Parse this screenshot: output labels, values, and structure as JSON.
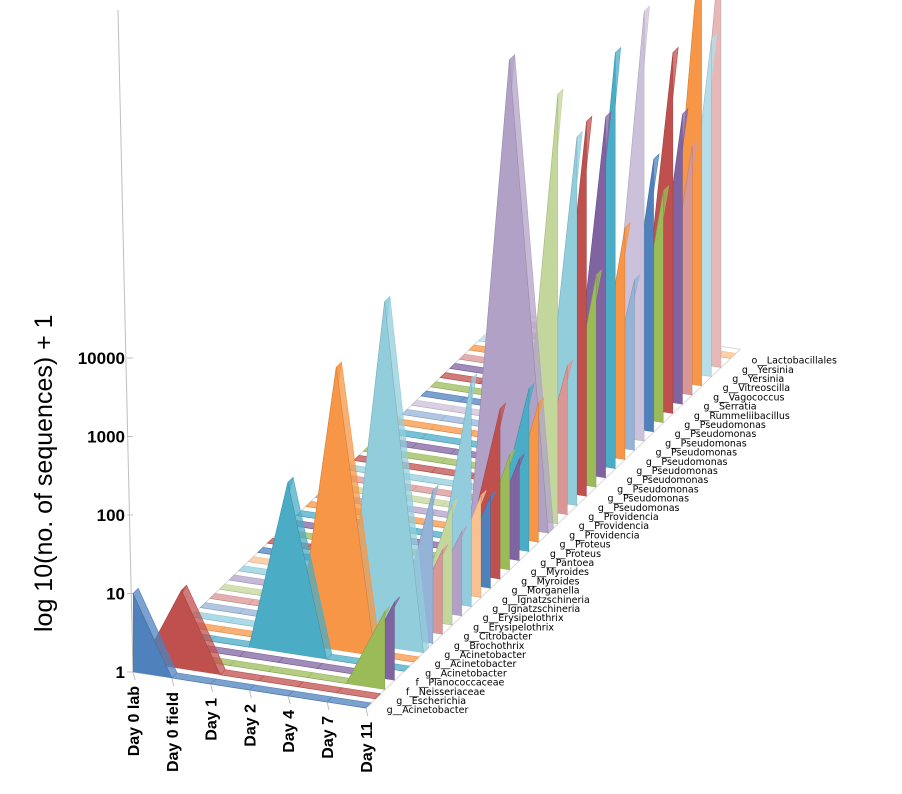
{
  "chart_data": {
    "type": "area",
    "view": "3d",
    "ylabel": "log 10(no. of sequences) + 1",
    "yscale": "log",
    "ylim": [
      1,
      1000000
    ],
    "yticks": [
      1,
      10,
      100,
      1000,
      10000
    ],
    "ytick_labels": [
      "1",
      "10",
      "100",
      "1000",
      "10000"
    ],
    "categories": [
      "Day 0 lab",
      "Day 0 field",
      "Day 1",
      "Day 2",
      "Day 4",
      "Day 7",
      "Day 11"
    ],
    "series": [
      {
        "name": "g__Acinetobacter",
        "color": "#4f81bd",
        "values": [
          10,
          1,
          1,
          1,
          1,
          1,
          1
        ]
      },
      {
        "name": "g__Escherichia",
        "color": "#c0504d",
        "values": [
          1,
          10,
          1,
          1,
          1,
          1,
          1
        ]
      },
      {
        "name": "f__Neisseriaceae",
        "color": "#9bbb59",
        "values": [
          1,
          1,
          1,
          1,
          1,
          1,
          10
        ]
      },
      {
        "name": "f__Planococcaceae",
        "color": "#8064a2",
        "values": [
          1,
          1,
          1,
          1,
          1,
          1,
          10
        ]
      },
      {
        "name": "g__Acinetobacter",
        "color": "#4bacc6",
        "values": [
          1,
          1,
          1,
          150,
          1,
          1,
          1
        ]
      },
      {
        "name": "g__Acinetobacter",
        "color": "#f79646",
        "values": [
          1,
          1,
          1,
          1,
          4000,
          1,
          1
        ]
      },
      {
        "name": "g__Acinetobacter",
        "color": "#92cddc",
        "values": [
          1,
          1,
          1,
          1,
          1,
          25000,
          1
        ]
      },
      {
        "name": "g__Brochothrix",
        "color": "#95b3d7",
        "values": [
          1,
          1,
          1,
          1,
          1,
          1,
          90
        ]
      },
      {
        "name": "g__Citrobacter",
        "color": "#d99694",
        "values": [
          1,
          1,
          1,
          1,
          1,
          1,
          12
        ]
      },
      {
        "name": "g__Erysipelothrix",
        "color": "#c3d69b",
        "values": [
          1,
          1,
          1,
          1,
          1,
          1,
          35
        ]
      },
      {
        "name": "g__Erysipelothrix",
        "color": "#b2a1c7",
        "values": [
          1,
          1,
          1,
          1,
          1,
          1,
          12
        ]
      },
      {
        "name": "g__Ignatzschineria",
        "color": "#93cddd",
        "values": [
          1,
          1,
          1,
          1,
          1,
          1,
          800
        ]
      },
      {
        "name": "g__Ignatzschineria",
        "color": "#fac090",
        "values": [
          1,
          1,
          1,
          1,
          1,
          1,
          20
        ]
      },
      {
        "name": "g__Morganella",
        "color": "#4f81bd",
        "values": [
          1,
          1,
          1,
          1,
          1,
          1,
          15
        ]
      },
      {
        "name": "g__Myroides",
        "color": "#c0504d",
        "values": [
          1,
          1,
          1,
          1,
          1,
          1,
          150
        ]
      },
      {
        "name": "g__Myroides",
        "color": "#9bbb59",
        "values": [
          1,
          1,
          1,
          1,
          1,
          1,
          30
        ]
      },
      {
        "name": "g__Pantoea",
        "color": "#8064a2",
        "values": [
          1,
          1,
          1,
          1,
          1,
          1,
          20
        ]
      },
      {
        "name": "g__Proteus",
        "color": "#4bacc6",
        "values": [
          1,
          1,
          1,
          1,
          1,
          1,
          120
        ]
      },
      {
        "name": "g__Proteus",
        "color": "#f79646",
        "values": [
          1,
          1,
          1,
          1,
          1,
          1,
          60
        ]
      },
      {
        "name": "g__Providencia",
        "color": "#b2a1c7",
        "values": [
          1,
          1,
          1,
          1,
          1,
          900000,
          1
        ]
      },
      {
        "name": "g__Providencia",
        "color": "#c3d69b",
        "values": [
          1,
          1,
          1,
          1,
          1,
          1,
          300000
        ]
      },
      {
        "name": "g__Providencia",
        "color": "#d99694",
        "values": [
          1,
          1,
          1,
          1,
          1,
          1,
          80
        ]
      },
      {
        "name": "g__Pseudomonas",
        "color": "#92cddc",
        "values": [
          1,
          1,
          1,
          1,
          1,
          1,
          50000
        ]
      },
      {
        "name": "g__Pseudomonas",
        "color": "#c0504d",
        "values": [
          1,
          1,
          1,
          1,
          1,
          1,
          60000
        ]
      },
      {
        "name": "g__Pseudomonas",
        "color": "#9bbb59",
        "values": [
          1,
          1,
          1,
          1,
          1,
          1,
          500
        ]
      },
      {
        "name": "g__Pseudomonas",
        "color": "#8064a2",
        "values": [
          1,
          1,
          1,
          1,
          1,
          1,
          40000
        ]
      },
      {
        "name": "g__Pseudomonas",
        "color": "#4bacc6",
        "values": [
          1,
          1,
          1,
          1,
          1,
          1,
          200000
        ]
      },
      {
        "name": "g__Pseudomonas",
        "color": "#f79646",
        "values": [
          1,
          1,
          1,
          1,
          1,
          1,
          900
        ]
      },
      {
        "name": "g__Pseudomonas",
        "color": "#95b3d7",
        "values": [
          1,
          1,
          1,
          1,
          1,
          1,
          150
        ]
      },
      {
        "name": "g__Pseudomonas",
        "color": "#ccc1da",
        "values": [
          1,
          1,
          1,
          1,
          1,
          1,
          300000
        ]
      },
      {
        "name": "g__Pseudomonas",
        "color": "#4f81bd",
        "values": [
          1,
          1,
          1,
          1,
          1,
          1,
          3000
        ]
      },
      {
        "name": "g__Pseudomonas",
        "color": "#9bbb59",
        "values": [
          1,
          1,
          1,
          1,
          1,
          1,
          900
        ]
      },
      {
        "name": "g__Rummeliibacillus",
        "color": "#c0504d",
        "values": [
          1,
          1,
          1,
          1,
          1,
          1,
          40000
        ]
      },
      {
        "name": "g__Serratia",
        "color": "#8064a2",
        "values": [
          1,
          1,
          1,
          1,
          1,
          1,
          5000
        ]
      },
      {
        "name": "g__Vagococcus",
        "color": "#d99694",
        "values": [
          1,
          1,
          1,
          1,
          1,
          1,
          1500
        ]
      },
      {
        "name": "g__Vitreoscilla",
        "color": "#f79646",
        "values": [
          1,
          1,
          1,
          1,
          1,
          1,
          800000
        ]
      },
      {
        "name": "g__Yersinia",
        "color": "#b7dee8",
        "values": [
          1,
          1,
          1,
          1,
          1,
          1,
          20000
        ]
      },
      {
        "name": "g__Yersinia",
        "color": "#e6b9b8",
        "values": [
          1,
          1,
          1,
          1,
          1,
          1,
          300000
        ]
      },
      {
        "name": "o__Lactobacillales",
        "color": "#fac090",
        "values": [
          1,
          1,
          1,
          1,
          1,
          1,
          1
        ]
      }
    ],
    "grid": false,
    "legend": "none"
  }
}
